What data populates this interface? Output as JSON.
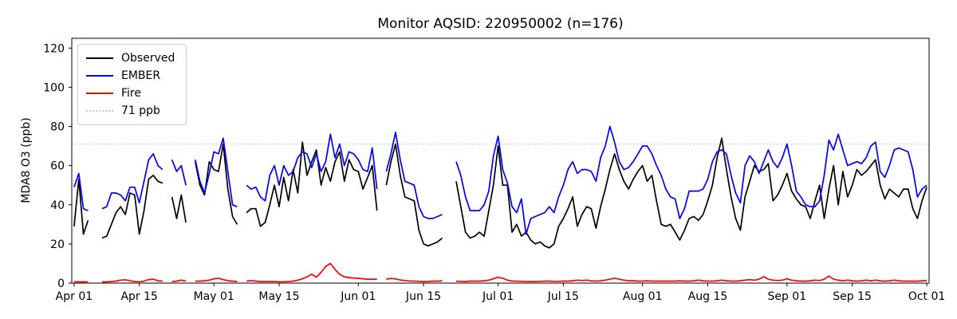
{
  "chart_data": {
    "type": "line",
    "title": "Monitor AQSID: 220950002 (n=176)",
    "ylabel": "MDA8 O3 (ppb)",
    "xlabel": "",
    "ylim": [
      0,
      125
    ],
    "xlim": [
      -0.5,
      183.5
    ],
    "x_unit": "days since Apr 01",
    "grid": false,
    "legend_position": "upper left",
    "yticks": [
      0,
      20,
      40,
      60,
      80,
      100,
      120
    ],
    "xticks": [
      {
        "day": 0,
        "label": "Apr 01"
      },
      {
        "day": 14,
        "label": "Apr 15"
      },
      {
        "day": 30,
        "label": "May 01"
      },
      {
        "day": 44,
        "label": "May 15"
      },
      {
        "day": 61,
        "label": "Jun 01"
      },
      {
        "day": 75,
        "label": "Jun 15"
      },
      {
        "day": 91,
        "label": "Jul 01"
      },
      {
        "day": 105,
        "label": "Jul 15"
      },
      {
        "day": 122,
        "label": "Aug 01"
      },
      {
        "day": 136,
        "label": "Aug 15"
      },
      {
        "day": 153,
        "label": "Sep 01"
      },
      {
        "day": 167,
        "label": "Sep 15"
      },
      {
        "day": 183,
        "label": "Oct 01"
      }
    ],
    "hline": {
      "value": 71,
      "label": "71 ppb",
      "color": "#c9c9c9",
      "style": "dotted"
    },
    "legend": [
      {
        "label": "Observed",
        "color": "#000000",
        "style": "solid"
      },
      {
        "label": "EMBER",
        "color": "#0000ff",
        "style": "solid"
      },
      {
        "label": "Fire",
        "color": "#ff0000",
        "style": "solid"
      },
      {
        "label": "71 ppb",
        "color": "#c9c9c9",
        "style": "dotted"
      }
    ],
    "series": [
      {
        "name": "Observed",
        "color": "#000000",
        "values": [
          29,
          53,
          25,
          32,
          null,
          null,
          23,
          24,
          30,
          36,
          39,
          35,
          46,
          45,
          25,
          37,
          53,
          55,
          52,
          51,
          null,
          44,
          33,
          45,
          31,
          null,
          62,
          50,
          45,
          62,
          58,
          57,
          71,
          48,
          34,
          30,
          null,
          36,
          38,
          38,
          29,
          31,
          40,
          50,
          39,
          54,
          42,
          58,
          46,
          72,
          55,
          62,
          68,
          50,
          59,
          52,
          62,
          67,
          52,
          63,
          58,
          57,
          48,
          54,
          60,
          37,
          null,
          50,
          62,
          71,
          55,
          44,
          43,
          42,
          27,
          20,
          19,
          20,
          21,
          23,
          null,
          null,
          52,
          39,
          26,
          23,
          24,
          26,
          24,
          37,
          50,
          70,
          50,
          50,
          26,
          30,
          24,
          26,
          22,
          20,
          21,
          19,
          18,
          20,
          29,
          33,
          38,
          44,
          29,
          35,
          39,
          38,
          28,
          39,
          48,
          58,
          66,
          58,
          52,
          48,
          53,
          57,
          60,
          52,
          55,
          42,
          30,
          29,
          30,
          26,
          22,
          27,
          33,
          34,
          32,
          35,
          42,
          50,
          64,
          74,
          58,
          44,
          33,
          27,
          44,
          52,
          60,
          57,
          58,
          61,
          42,
          45,
          50,
          56,
          47,
          43,
          40,
          39,
          33,
          42,
          50,
          33,
          48,
          60,
          40,
          57,
          44,
          50,
          58,
          55,
          57,
          60,
          63,
          50,
          43,
          48,
          46,
          44,
          48,
          48,
          38,
          33,
          42,
          49
        ]
      },
      {
        "name": "EMBER",
        "color": "#0000ff",
        "values": [
          49,
          56,
          38,
          37,
          null,
          null,
          38,
          39,
          46,
          46,
          45,
          42,
          49,
          49,
          41,
          52,
          63,
          66,
          60,
          58,
          null,
          63,
          57,
          60,
          50,
          null,
          63,
          52,
          46,
          56,
          67,
          66,
          74,
          57,
          40,
          39,
          null,
          50,
          48,
          49,
          44,
          42,
          55,
          60,
          50,
          60,
          55,
          57,
          64,
          67,
          66,
          59,
          66,
          57,
          62,
          76,
          64,
          71,
          60,
          67,
          66,
          63,
          58,
          57,
          69,
          48,
          null,
          57,
          66,
          77,
          63,
          52,
          51,
          50,
          39,
          34,
          33,
          33,
          34,
          35,
          null,
          null,
          62,
          55,
          44,
          37,
          37,
          37,
          40,
          47,
          65,
          75,
          58,
          51,
          39,
          36,
          43,
          25,
          33,
          34,
          35,
          36,
          39,
          36,
          44,
          50,
          58,
          62,
          56,
          58,
          58,
          57,
          52,
          64,
          70,
          80,
          72,
          62,
          58,
          59,
          62,
          66,
          70,
          70,
          66,
          60,
          55,
          48,
          44,
          43,
          33,
          38,
          47,
          47,
          47,
          48,
          53,
          62,
          67,
          68,
          66,
          55,
          46,
          41,
          60,
          65,
          62,
          56,
          62,
          68,
          62,
          59,
          64,
          71,
          60,
          47,
          44,
          40,
          39,
          39,
          42,
          55,
          73,
          68,
          76,
          68,
          60,
          61,
          62,
          61,
          64,
          70,
          72,
          57,
          54,
          60,
          68,
          69,
          68,
          67,
          58,
          44,
          48,
          50
        ]
      },
      {
        "name": "Fire",
        "color": "#ff0000",
        "values": [
          0.7,
          0.6,
          0.6,
          0.7,
          null,
          null,
          0.6,
          0.6,
          0.8,
          1.0,
          1.5,
          1.7,
          1.2,
          0.8,
          0.7,
          1.0,
          1.8,
          2.0,
          1.2,
          1.0,
          null,
          0.8,
          1.0,
          1.5,
          1.0,
          null,
          1.0,
          1.0,
          1.2,
          1.5,
          2.2,
          2.4,
          1.8,
          1.2,
          1.0,
          0.8,
          null,
          1.0,
          1.3,
          1.0,
          0.8,
          0.8,
          0.8,
          0.8,
          0.7,
          0.7,
          0.8,
          1.0,
          1.5,
          2.2,
          3.2,
          4.5,
          3.0,
          5.5,
          8.5,
          10.0,
          7.0,
          4.5,
          3.2,
          2.8,
          2.6,
          2.5,
          2.2,
          2.0,
          2.0,
          2.0,
          null,
          2.0,
          2.4,
          2.1,
          1.6,
          1.3,
          1.1,
          1.0,
          0.9,
          0.8,
          0.8,
          1.0,
          1.0,
          1.2,
          null,
          null,
          1.0,
          0.9,
          0.8,
          1.0,
          1.0,
          1.0,
          1.2,
          1.5,
          2.2,
          3.0,
          2.5,
          1.5,
          1.0,
          1.0,
          0.9,
          0.8,
          0.8,
          0.8,
          0.9,
          1.0,
          1.0,
          0.9,
          0.9,
          1.0,
          1.0,
          1.2,
          1.5,
          1.3,
          1.5,
          1.2,
          1.0,
          1.2,
          1.5,
          2.0,
          2.5,
          2.0,
          1.5,
          1.2,
          1.2,
          1.0,
          1.0,
          1.2,
          1.0,
          1.0,
          1.0,
          1.0,
          1.0,
          1.0,
          1.2,
          1.0,
          1.0,
          1.2,
          1.5,
          1.2,
          1.0,
          1.0,
          1.2,
          1.5,
          1.2,
          1.0,
          1.0,
          1.2,
          1.5,
          1.8,
          1.5,
          2.0,
          3.3,
          2.0,
          1.5,
          1.3,
          1.5,
          2.2,
          1.5,
          1.2,
          1.0,
          1.0,
          1.2,
          1.5,
          1.3,
          2.0,
          3.6,
          2.0,
          1.5,
          1.2,
          1.5,
          1.2,
          1.0,
          1.2,
          1.5,
          1.2,
          1.5,
          1.2,
          1.0,
          1.2,
          1.5,
          1.2,
          1.0,
          1.0,
          1.0,
          1.0,
          1.2,
          1.3
        ]
      }
    ]
  }
}
